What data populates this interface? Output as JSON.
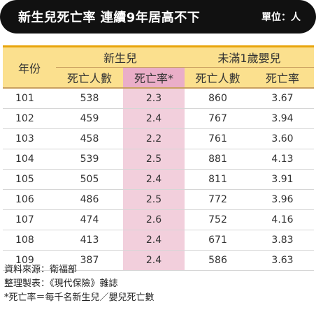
{
  "header": {
    "title": "新生兒死亡率 連續9年居高不下",
    "unit": "單位：人"
  },
  "table": {
    "year_header": "年份",
    "group_newborn": "新生兒",
    "group_infant": "未滿1歲嬰兒",
    "col_deaths": "死亡人數",
    "col_rate": "死亡率*",
    "col_infant_deaths": "死亡人數",
    "col_infant_rate": "死亡率",
    "rows": [
      {
        "year": "101",
        "nb_deaths": "538",
        "nb_rate": "2.3",
        "inf_deaths": "860",
        "inf_rate": "3.67"
      },
      {
        "year": "102",
        "nb_deaths": "459",
        "nb_rate": "2.4",
        "inf_deaths": "767",
        "inf_rate": "3.94"
      },
      {
        "year": "103",
        "nb_deaths": "458",
        "nb_rate": "2.2",
        "inf_deaths": "761",
        "inf_rate": "3.60"
      },
      {
        "year": "104",
        "nb_deaths": "539",
        "nb_rate": "2.5",
        "inf_deaths": "881",
        "inf_rate": "4.13"
      },
      {
        "year": "105",
        "nb_deaths": "505",
        "nb_rate": "2.4",
        "inf_deaths": "811",
        "inf_rate": "3.91"
      },
      {
        "year": "106",
        "nb_deaths": "486",
        "nb_rate": "2.5",
        "inf_deaths": "772",
        "inf_rate": "3.96"
      },
      {
        "year": "107",
        "nb_deaths": "474",
        "nb_rate": "2.6",
        "inf_deaths": "752",
        "inf_rate": "4.16"
      },
      {
        "year": "108",
        "nb_deaths": "413",
        "nb_rate": "2.4",
        "inf_deaths": "671",
        "inf_rate": "3.83"
      },
      {
        "year": "109",
        "nb_deaths": "387",
        "nb_rate": "2.4",
        "inf_deaths": "586",
        "inf_rate": "3.63"
      }
    ]
  },
  "notes": {
    "source": "資料來源：衛福部",
    "compiled": "整理製表：《現代保險》雜誌",
    "footnote": "*死亡率＝每千名新生兒／嬰兒死亡數"
  },
  "colors": {
    "title_bg": "#111111",
    "header_bg": "#fbe08e",
    "header_rule": "#e8a40c",
    "rate_column": "#f2cfdc",
    "rate_header": "#eaaec8",
    "highlight_text": "#e0202c"
  }
}
